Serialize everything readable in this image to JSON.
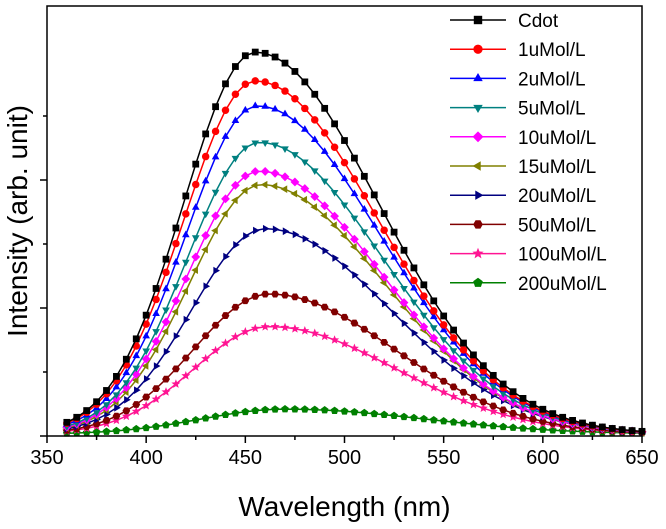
{
  "chart_data": {
    "type": "line",
    "title": "",
    "xlabel": "Wavelength (nm)",
    "ylabel": "Intensity (arb. unit)",
    "xlim": [
      350,
      650
    ],
    "ylim": [
      0,
      1.12
    ],
    "xticks": [
      350,
      400,
      450,
      500,
      550,
      600,
      650
    ],
    "xtick_labels": [
      "350",
      "400",
      "450",
      "500",
      "550",
      "600",
      "650"
    ],
    "yticks_shown_without_labels": true,
    "grid": false,
    "legend_position": "top-right",
    "x_range_of_data": [
      360,
      650
    ],
    "series": [
      {
        "name": "Cdot",
        "color": "#000000",
        "marker": "square",
        "peak_x": 455,
        "peak_y": 1.0,
        "width_left": 36,
        "width_right": 62,
        "base": 0.005
      },
      {
        "name": "1uMol/L",
        "color": "#ff0000",
        "marker": "circle",
        "peak_x": 455,
        "peak_y": 0.925,
        "width_left": 36,
        "width_right": 62,
        "base": 0.005
      },
      {
        "name": "2uMol/L",
        "color": "#0000ff",
        "marker": "triangle-up",
        "peak_x": 456,
        "peak_y": 0.86,
        "width_left": 36,
        "width_right": 62,
        "base": 0.005
      },
      {
        "name": "5uMol/L",
        "color": "#008080",
        "marker": "triangle-down",
        "peak_x": 457,
        "peak_y": 0.765,
        "width_left": 36,
        "width_right": 62,
        "base": 0.005
      },
      {
        "name": "10uMol/L",
        "color": "#ff00ff",
        "marker": "diamond",
        "peak_x": 457,
        "peak_y": 0.69,
        "width_left": 36,
        "width_right": 62,
        "base": 0.005
      },
      {
        "name": "15uMol/L",
        "color": "#808000",
        "marker": "triangle-left",
        "peak_x": 458,
        "peak_y": 0.655,
        "width_left": 36,
        "width_right": 62,
        "base": 0.005
      },
      {
        "name": "20uMol/L",
        "color": "#000080",
        "marker": "triangle-right",
        "peak_x": 460,
        "peak_y": 0.54,
        "width_left": 37,
        "width_right": 63,
        "base": 0.005
      },
      {
        "name": "50uMol/L",
        "color": "#800000",
        "marker": "hexagon",
        "peak_x": 462,
        "peak_y": 0.37,
        "width_left": 38,
        "width_right": 63,
        "base": 0.005
      },
      {
        "name": "100uMol/L",
        "color": "#ff1493",
        "marker": "star",
        "peak_x": 462,
        "peak_y": 0.285,
        "width_left": 38,
        "width_right": 64,
        "base": 0.005
      },
      {
        "name": "200uMol/L",
        "color": "#008000",
        "marker": "pentagon",
        "peak_x": 470,
        "peak_y": 0.07,
        "width_left": 42,
        "width_right": 70,
        "base": 0.005
      }
    ]
  }
}
